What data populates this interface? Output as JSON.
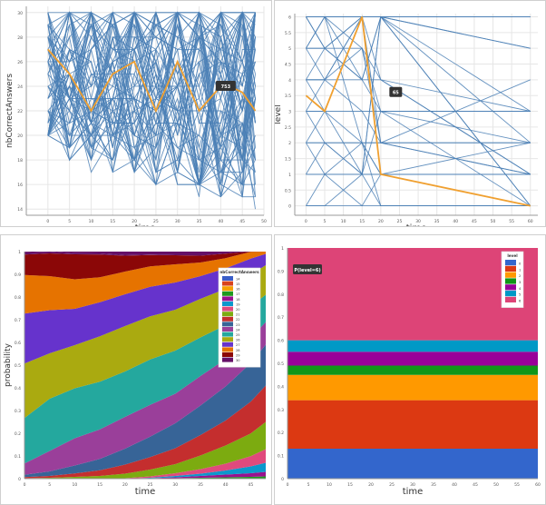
{
  "chart_data": [
    {
      "id": "score-lines",
      "type": "line",
      "xlabel": "time",
      "ylabel": "nbCorrectAnswers",
      "xlim": [
        -5,
        50
      ],
      "ylim": [
        13.5,
        30.5
      ],
      "xticks": [
        0,
        5,
        10,
        15,
        20,
        25,
        30,
        35,
        40,
        45,
        50
      ],
      "yticks": [
        14,
        16,
        18,
        20,
        22,
        24,
        26,
        28,
        30
      ],
      "x": [
        0,
        5,
        10,
        15,
        20,
        25,
        30,
        35,
        40,
        45,
        48
      ],
      "highlight": {
        "label": "753",
        "values": [
          27,
          25,
          22,
          25,
          26,
          22,
          26,
          22,
          24,
          24,
          23.5,
          22
        ]
      },
      "highlight_x": [
        0,
        5,
        10,
        15,
        20,
        25,
        30,
        35,
        40,
        42,
        45,
        48
      ],
      "series_color": "#4a7fb5",
      "highlight_color": "#f0a030",
      "n_series": 70
    },
    {
      "id": "level-lines",
      "type": "line",
      "xlabel": "time",
      "ylabel": "level",
      "xlim": [
        -3,
        62
      ],
      "ylim": [
        -0.3,
        6.1
      ],
      "xticks": [
        0,
        5,
        10,
        15,
        20,
        25,
        30,
        35,
        40,
        45,
        50,
        55,
        60
      ],
      "yticks": [
        0,
        0.5,
        1,
        1.5,
        2,
        2.5,
        3,
        3.5,
        4,
        4.5,
        5,
        5.5,
        6
      ],
      "x": [
        0,
        5,
        15,
        20,
        60
      ],
      "highlight": {
        "label": "65",
        "values": [
          3.5,
          3,
          6,
          1,
          0
        ]
      },
      "series_color": "#4a7fb5",
      "highlight_color": "#f0a030"
    },
    {
      "id": "score-probability-area",
      "type": "area",
      "xlabel": "time",
      "ylabel": "probability",
      "ylim": [
        0,
        1
      ],
      "yticks": [
        0,
        0.1,
        0.2,
        0.3,
        0.4,
        0.5,
        0.6,
        0.7,
        0.8,
        0.9,
        1
      ],
      "xticks": [
        0,
        5,
        10,
        15,
        20,
        25,
        30,
        35,
        40,
        45
      ],
      "x": [
        0,
        5,
        10,
        15,
        20,
        25,
        30,
        35,
        40,
        45,
        48
      ],
      "legend_title": "nbCorrectAnswers",
      "legend_position": "top-right",
      "series": [
        {
          "name": "14",
          "color": "#3a5ec8",
          "values": [
            0,
            0,
            0,
            0,
            0,
            0,
            0,
            0,
            0,
            0,
            0
          ]
        },
        {
          "name": "15",
          "color": "#d8431b",
          "values": [
            0,
            0,
            0,
            0,
            0,
            0,
            0,
            0,
            0,
            0,
            0
          ]
        },
        {
          "name": "16",
          "color": "#f5a000",
          "values": [
            0,
            0,
            0,
            0,
            0,
            0,
            0,
            0,
            0,
            0,
            0
          ]
        },
        {
          "name": "17",
          "color": "#1e9a1e",
          "values": [
            0,
            0,
            0,
            0,
            0,
            0,
            0.002,
            0.004,
            0.006,
            0.008,
            0.01
          ]
        },
        {
          "name": "18",
          "color": "#99118f",
          "values": [
            0,
            0,
            0,
            0,
            0,
            0.002,
            0.004,
            0.008,
            0.012,
            0.016,
            0.02
          ]
        },
        {
          "name": "19",
          "color": "#0c98cc",
          "values": [
            0,
            0,
            0,
            0,
            0,
            0.002,
            0.006,
            0.01,
            0.018,
            0.03,
            0.04
          ]
        },
        {
          "name": "20",
          "color": "#e04a7d",
          "values": [
            0,
            0,
            0,
            0,
            0.002,
            0.006,
            0.012,
            0.02,
            0.03,
            0.045,
            0.06
          ]
        },
        {
          "name": "21",
          "color": "#7cab10",
          "values": [
            0.002,
            0.004,
            0.008,
            0.012,
            0.02,
            0.03,
            0.04,
            0.06,
            0.08,
            0.1,
            0.12
          ]
        },
        {
          "name": "22",
          "color": "#c42e2e",
          "values": [
            0.005,
            0.008,
            0.015,
            0.025,
            0.04,
            0.055,
            0.07,
            0.09,
            0.11,
            0.14,
            0.16
          ]
        },
        {
          "name": "23",
          "color": "#376497",
          "values": [
            0.01,
            0.02,
            0.035,
            0.05,
            0.07,
            0.09,
            0.11,
            0.13,
            0.15,
            0.17,
            0.18
          ]
        },
        {
          "name": "24",
          "color": "#9a3f9a",
          "values": [
            0.05,
            0.09,
            0.12,
            0.13,
            0.14,
            0.14,
            0.13,
            0.13,
            0.12,
            0.11,
            0.1
          ]
        },
        {
          "name": "25",
          "color": "#24a89e",
          "values": [
            0.2,
            0.23,
            0.22,
            0.21,
            0.2,
            0.2,
            0.19,
            0.17,
            0.15,
            0.14,
            0.12
          ]
        },
        {
          "name": "26",
          "color": "#aaaa10",
          "values": [
            0.24,
            0.2,
            0.19,
            0.2,
            0.2,
            0.19,
            0.18,
            0.17,
            0.16,
            0.14,
            0.13
          ]
        },
        {
          "name": "27",
          "color": "#6633cc",
          "values": [
            0.22,
            0.19,
            0.16,
            0.15,
            0.14,
            0.13,
            0.12,
            0.1,
            0.09,
            0.07,
            0.05
          ]
        },
        {
          "name": "28",
          "color": "#e67300",
          "values": [
            0.17,
            0.15,
            0.13,
            0.11,
            0.1,
            0.09,
            0.08,
            0.06,
            0.045,
            0.03,
            0.015
          ]
        },
        {
          "name": "29",
          "color": "#8b0707",
          "values": [
            0.09,
            0.1,
            0.11,
            0.1,
            0.07,
            0.05,
            0.04,
            0.03,
            0.02,
            0.01,
            0.005
          ]
        },
        {
          "name": "30",
          "color": "#651067",
          "values": [
            0.01,
            0.01,
            0.005,
            0.005,
            0.002,
            0.002,
            0,
            0,
            0,
            0,
            0
          ]
        }
      ]
    },
    {
      "id": "level-probability-area",
      "type": "area",
      "xlabel": "time",
      "ylabel": "probability",
      "ylim": [
        0,
        1
      ],
      "yticks": [
        0,
        0.1,
        0.2,
        0.3,
        0.4,
        0.5,
        0.6,
        0.7,
        0.8,
        0.9,
        1
      ],
      "xticks": [
        0,
        5,
        10,
        15,
        20,
        25,
        30,
        35,
        40,
        45,
        50,
        55,
        60
      ],
      "x": [
        0,
        60
      ],
      "legend_title": "level",
      "legend_position": "top-right",
      "annotation": "P(level=6)",
      "series": [
        {
          "name": "0",
          "color": "#3366cc",
          "values": [
            0.13,
            0.13
          ]
        },
        {
          "name": "1",
          "color": "#dc3912",
          "values": [
            0.21,
            0.21
          ]
        },
        {
          "name": "2",
          "color": "#ff9900",
          "values": [
            0.11,
            0.11
          ]
        },
        {
          "name": "3",
          "color": "#109618",
          "values": [
            0.04,
            0.04
          ]
        },
        {
          "name": "4",
          "color": "#990099",
          "values": [
            0.06,
            0.06
          ]
        },
        {
          "name": "5",
          "color": "#0099c6",
          "values": [
            0.05,
            0.05
          ]
        },
        {
          "name": "6",
          "color": "#dd4477",
          "values": [
            0.4,
            0.4
          ]
        }
      ]
    }
  ]
}
